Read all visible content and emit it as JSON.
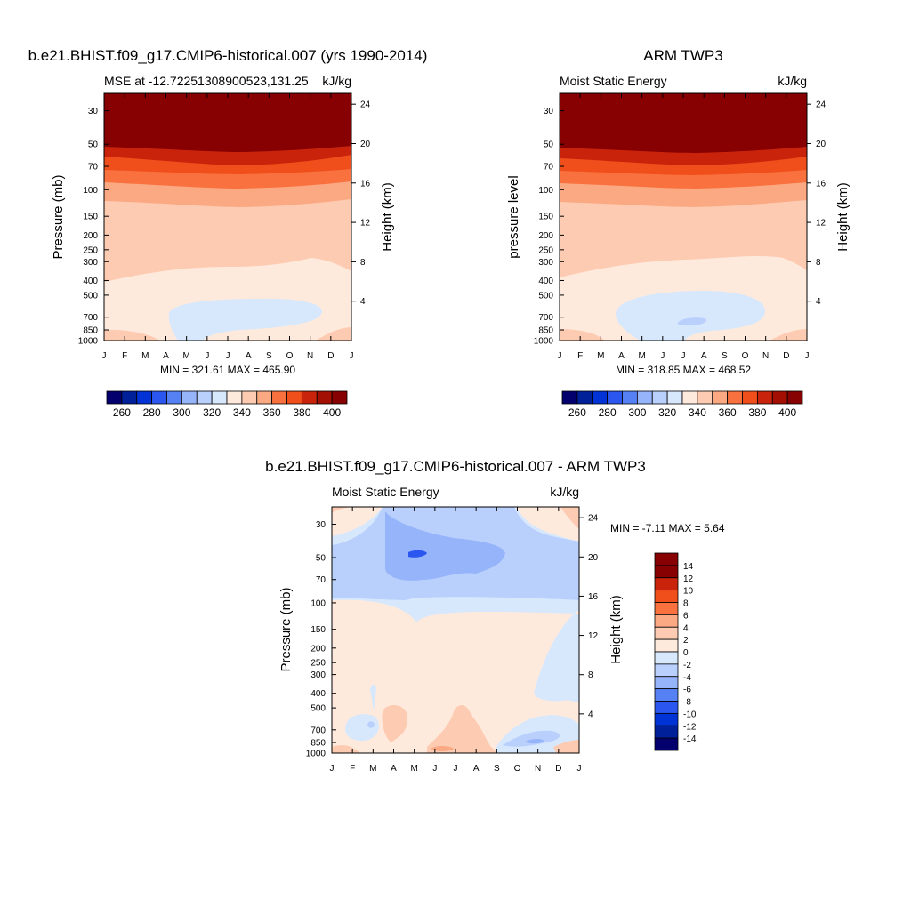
{
  "panels": [
    {
      "title": "b.e21.BHIST.f09_g17.CMIP6-historical.007 (yrs 1990-2014)",
      "left_string": "MSE at -12.72251308900523,131.25",
      "right_string": "kJ/kg",
      "ylabel": "Pressure (mb)",
      "ylabel_right": "Height (km)",
      "minmax": "MIN = 321.61 MAX = 465.90"
    },
    {
      "title": "ARM TWP3",
      "left_string": "Moist Static Energy",
      "right_string": "kJ/kg",
      "ylabel": "pressure level",
      "ylabel_right": "Height (km)",
      "minmax": "MIN = 318.85 MAX = 468.52"
    },
    {
      "title": "b.e21.BHIST.f09_g17.CMIP6-historical.007 - ARM TWP3",
      "left_string": "Moist Static Energy",
      "right_string": "kJ/kg",
      "ylabel": "Pressure (mb)",
      "ylabel_right": "Height (km)",
      "minmax": "MIN =  -7.11 MAX =   5.64"
    }
  ],
  "chart_data": [
    {
      "type": "heatmap",
      "title": "b.e21.BHIST.f09_g17.CMIP6-historical.007 (yrs 1990-2014)",
      "subtitle": "MSE at -12.72251308900523,131.25",
      "units": "kJ/kg",
      "ylabel": "Pressure (mb)",
      "ylabel_right": "Height (km)",
      "x_ticks": [
        "J",
        "F",
        "M",
        "A",
        "M",
        "J",
        "J",
        "A",
        "S",
        "O",
        "N",
        "D",
        "J"
      ],
      "y_ticks": [
        30,
        50,
        70,
        100,
        150,
        200,
        250,
        300,
        400,
        500,
        700,
        850,
        1000
      ],
      "y_log": true,
      "ylim": [
        1000,
        23
      ],
      "y_right_ticks": [
        4,
        8,
        12,
        16,
        20,
        24
      ],
      "colorbar_labels": [
        260,
        280,
        300,
        320,
        340,
        360,
        380,
        400
      ],
      "colorbar_colors": [
        "#03006d",
        "#00209a",
        "#0033d6",
        "#2b57f0",
        "#5681f5",
        "#96b4fa",
        "#b9cffc",
        "#d7e8fd",
        "#feeadc",
        "#fdcbb2",
        "#fba983",
        "#f8713e",
        "#f04f1c",
        "#c9240b",
        "#a31003",
        "#870002"
      ],
      "min": 321.61,
      "max": 465.9
    },
    {
      "type": "heatmap",
      "title": "ARM TWP3",
      "subtitle": "Moist Static Energy",
      "units": "kJ/kg",
      "ylabel": "pressure level",
      "ylabel_right": "Height (km)",
      "x_ticks": [
        "J",
        "F",
        "M",
        "A",
        "M",
        "J",
        "J",
        "A",
        "S",
        "O",
        "N",
        "D",
        "J"
      ],
      "y_ticks": [
        30,
        50,
        70,
        100,
        150,
        200,
        250,
        300,
        400,
        500,
        700,
        850,
        1000
      ],
      "y_log": true,
      "ylim": [
        1000,
        23
      ],
      "y_right_ticks": [
        4,
        8,
        12,
        16,
        20,
        24
      ],
      "colorbar_labels": [
        260,
        280,
        300,
        320,
        340,
        360,
        380,
        400
      ],
      "colorbar_colors": [
        "#03006d",
        "#00209a",
        "#0033d6",
        "#2b57f0",
        "#5681f5",
        "#96b4fa",
        "#b9cffc",
        "#d7e8fd",
        "#feeadc",
        "#fdcbb2",
        "#fba983",
        "#f8713e",
        "#f04f1c",
        "#c9240b",
        "#a31003",
        "#870002"
      ],
      "min": 318.85,
      "max": 468.52
    },
    {
      "type": "heatmap",
      "title": "b.e21.BHIST.f09_g17.CMIP6-historical.007 - ARM TWP3",
      "subtitle": "Moist Static Energy",
      "units": "kJ/kg",
      "ylabel": "Pressure (mb)",
      "ylabel_right": "Height (km)",
      "x_ticks": [
        "J",
        "F",
        "M",
        "A",
        "M",
        "J",
        "J",
        "A",
        "S",
        "O",
        "N",
        "D",
        "J"
      ],
      "y_ticks": [
        30,
        50,
        70,
        100,
        150,
        200,
        250,
        300,
        400,
        500,
        700,
        850,
        1000
      ],
      "y_log": true,
      "ylim": [
        1000,
        23
      ],
      "y_right_ticks": [
        4,
        8,
        12,
        16,
        20,
        24
      ],
      "colorbar_labels": [
        14,
        12,
        10,
        8,
        6,
        4,
        2,
        0,
        -2,
        -4,
        -6,
        -8,
        -10,
        -12,
        -14
      ],
      "colorbar_colors": [
        "#870002",
        "#c9240b",
        "#f04f1c",
        "#f8713e",
        "#fba983",
        "#fdcbb2",
        "#feeadc",
        "#d7e8fd",
        "#b9cffc",
        "#96b4fa",
        "#5681f5",
        "#2b57f0",
        "#0033d6",
        "#00209a",
        "#03006d"
      ],
      "min": -7.11,
      "max": 5.64
    }
  ]
}
